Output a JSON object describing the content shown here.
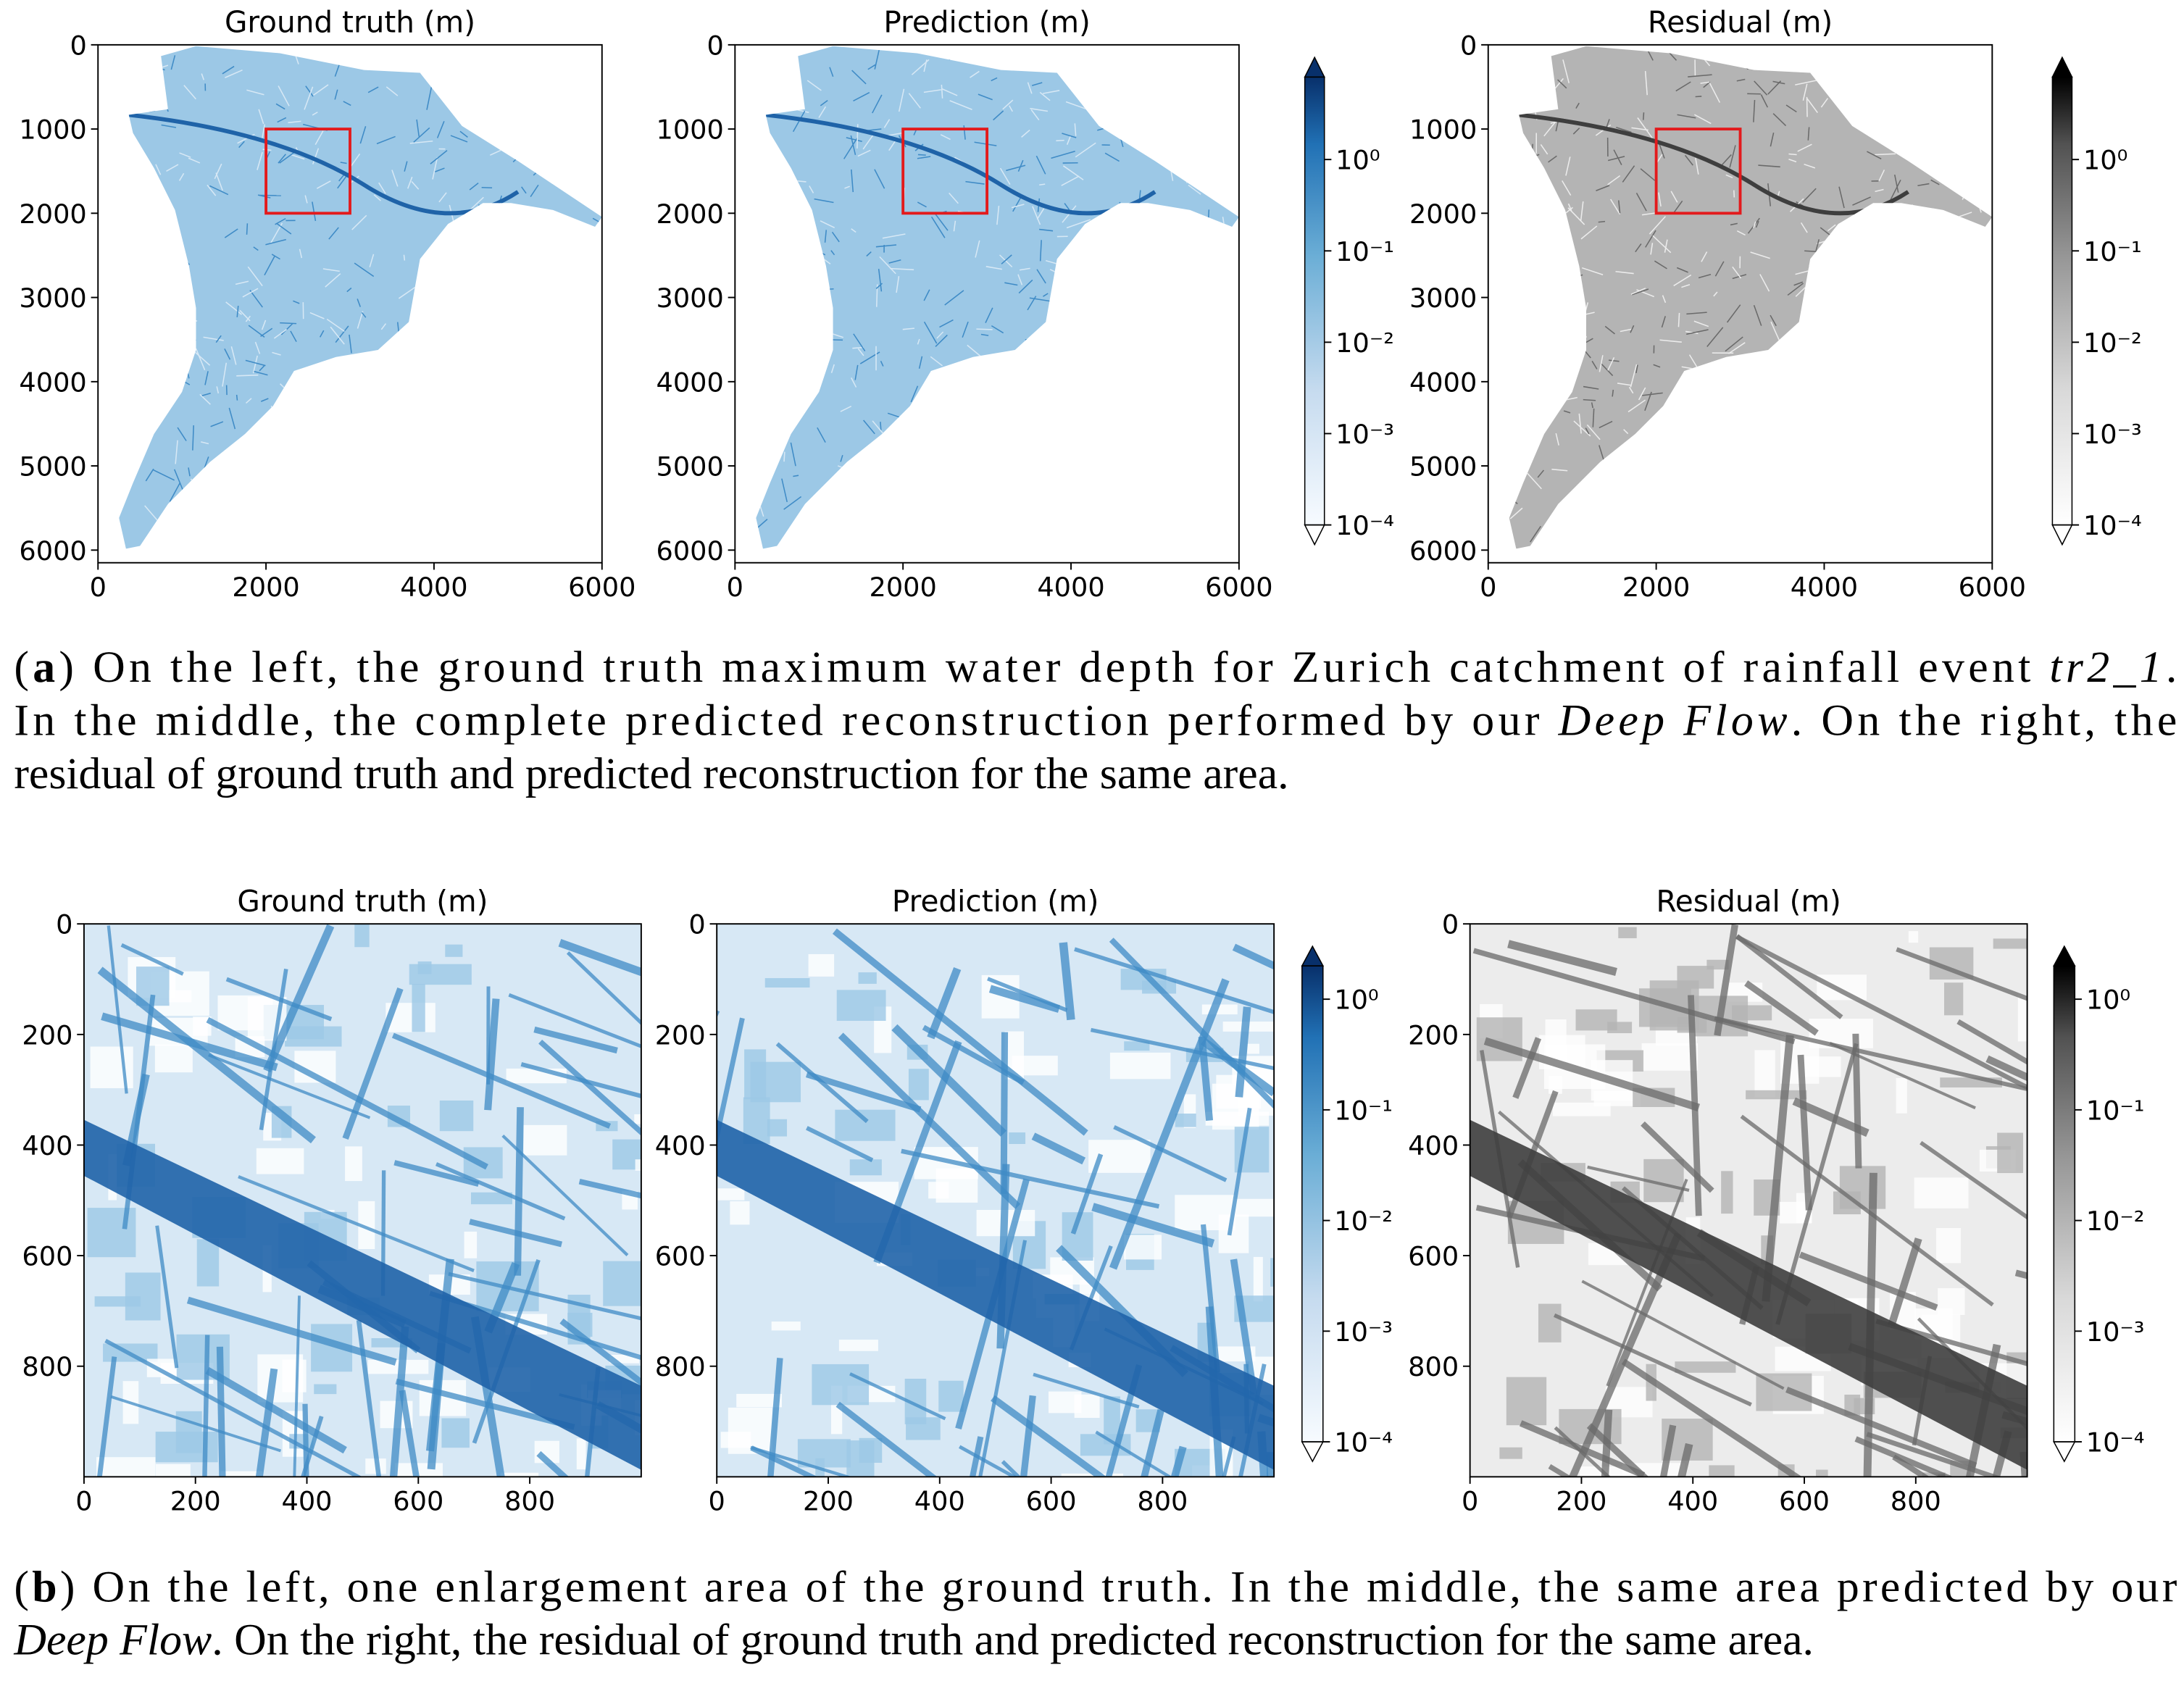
{
  "chart_data": [
    {
      "type": "image",
      "title": "Ground truth (m)",
      "colormap": "Blues",
      "xlim": [
        0,
        6000
      ],
      "ylim": [
        6150,
        0
      ],
      "xticks": [
        0,
        2000,
        4000,
        6000
      ],
      "yticks": [
        0,
        1000,
        2000,
        3000,
        4000,
        5000,
        6000
      ],
      "box": {
        "x": [
          2000,
          3000
        ],
        "y": [
          1000,
          2000
        ],
        "color": "#e31a1c"
      }
    },
    {
      "type": "image",
      "title": "Prediction (m)",
      "colormap": "Blues",
      "xlim": [
        0,
        6000
      ],
      "ylim": [
        6150,
        0
      ],
      "xticks": [
        0,
        2000,
        4000,
        6000
      ],
      "yticks": [
        0,
        1000,
        2000,
        3000,
        4000,
        5000,
        6000
      ],
      "box": {
        "x": [
          2000,
          3000
        ],
        "y": [
          1000,
          2000
        ],
        "color": "#e31a1c"
      }
    },
    {
      "type": "image",
      "title": "Residual (m)",
      "colormap": "Greys",
      "xlim": [
        0,
        6000
      ],
      "ylim": [
        6150,
        0
      ],
      "xticks": [
        0,
        2000,
        4000,
        6000
      ],
      "yticks": [
        0,
        1000,
        2000,
        3000,
        4000,
        5000,
        6000
      ],
      "box": {
        "x": [
          2000,
          3000
        ],
        "y": [
          1000,
          2000
        ],
        "color": "#e31a1c"
      }
    },
    {
      "type": "colorbar",
      "colormap": "Blues",
      "log": true,
      "ylim": [
        0.0001,
        8
      ],
      "yticks": [
        {
          "value": 0.0001,
          "label": "10⁻⁴"
        },
        {
          "value": 0.001,
          "label": "10⁻³"
        },
        {
          "value": 0.01,
          "label": "10⁻²"
        },
        {
          "value": 0.1,
          "label": "10⁻¹"
        },
        {
          "value": 1,
          "label": "10⁰"
        }
      ]
    },
    {
      "type": "colorbar",
      "colormap": "Greys",
      "log": true,
      "ylim": [
        0.0001,
        8
      ],
      "yticks": [
        {
          "value": 0.0001,
          "label": "10⁻⁴"
        },
        {
          "value": 0.001,
          "label": "10⁻³"
        },
        {
          "value": 0.01,
          "label": "10⁻²"
        },
        {
          "value": 0.1,
          "label": "10⁻¹"
        },
        {
          "value": 1,
          "label": "10⁰"
        }
      ]
    },
    {
      "type": "image",
      "title": "Ground truth (m)",
      "colormap": "Blues",
      "xlim": [
        0,
        1000
      ],
      "ylim": [
        1000,
        0
      ],
      "xticks": [
        0,
        200,
        400,
        600,
        800
      ],
      "yticks": [
        0,
        200,
        400,
        600,
        800
      ]
    },
    {
      "type": "image",
      "title": "Prediction (m)",
      "colormap": "Blues",
      "xlim": [
        0,
        1000
      ],
      "ylim": [
        1000,
        0
      ],
      "xticks": [
        0,
        200,
        400,
        600,
        800
      ],
      "yticks": [
        0,
        200,
        400,
        600,
        800
      ]
    },
    {
      "type": "image",
      "title": "Residual (m)",
      "colormap": "Greys",
      "xlim": [
        0,
        1000
      ],
      "ylim": [
        1000,
        0
      ],
      "xticks": [
        0,
        200,
        400,
        600,
        800
      ],
      "yticks": [
        0,
        200,
        400,
        600,
        800
      ]
    },
    {
      "type": "colorbar",
      "colormap": "Blues",
      "log": true,
      "ylim": [
        0.0001,
        2
      ],
      "yticks": [
        {
          "value": 0.0001,
          "label": "10⁻⁴"
        },
        {
          "value": 0.001,
          "label": "10⁻³"
        },
        {
          "value": 0.01,
          "label": "10⁻²"
        },
        {
          "value": 0.1,
          "label": "10⁻¹"
        },
        {
          "value": 1,
          "label": "10⁰"
        }
      ]
    },
    {
      "type": "colorbar",
      "colormap": "Greys",
      "log": true,
      "ylim": [
        0.0001,
        2
      ],
      "yticks": [
        {
          "value": 0.0001,
          "label": "10⁻⁴"
        },
        {
          "value": 0.001,
          "label": "10⁻³"
        },
        {
          "value": 0.01,
          "label": "10⁻²"
        },
        {
          "value": 0.1,
          "label": "10⁻¹"
        },
        {
          "value": 1,
          "label": "10⁰"
        }
      ]
    }
  ],
  "captions": [
    {
      "lines": [
        [
          {
            "text": "(",
            "style": "normal"
          },
          {
            "text": "a",
            "style": "bold"
          },
          {
            "text": ")  On the left, the ground truth maximum water depth for Zurich catchment of rainfall event ",
            "style": "normal"
          },
          {
            "text": "tr2_1",
            "style": "italic"
          },
          {
            "text": ".",
            "style": "normal"
          }
        ],
        [
          {
            "text": "In the middle, the complete predicted reconstruction performed by our ",
            "style": "normal"
          },
          {
            "text": "Deep Flow",
            "style": "italic"
          },
          {
            "text": ". On the right, the",
            "style": "normal"
          }
        ],
        [
          {
            "text": "residual of ground truth and predicted reconstruction for the same area.",
            "style": "normal"
          }
        ]
      ]
    },
    {
      "lines": [
        [
          {
            "text": "(",
            "style": "normal"
          },
          {
            "text": "b",
            "style": "bold"
          },
          {
            "text": ")  On the left, one enlargement area of the ground truth. In the middle, the same area predicted by our",
            "style": "normal"
          }
        ],
        [
          {
            "text": "Deep Flow",
            "style": "italic"
          },
          {
            "text": ". On the right, the residual of ground truth and predicted reconstruction for the same area.",
            "style": "normal"
          }
        ]
      ]
    }
  ]
}
